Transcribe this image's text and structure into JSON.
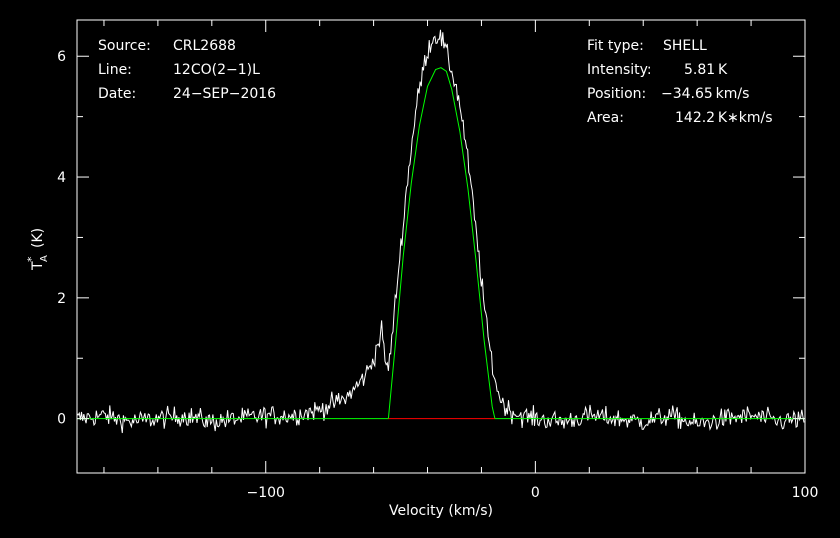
{
  "info": {
    "source_label": "Source:",
    "source_value": "CRL2688",
    "line_label": "Line:",
    "line_value": "12CO(2−1)L",
    "date_label": "Date:",
    "date_value": "24−SEP−2016",
    "fit_type_label": "Fit type:",
    "fit_type_value": "SHELL",
    "intensity_label": "Intensity:",
    "intensity_value": "5.81 K",
    "position_label": "Position:",
    "position_value": "−34.65 km/s",
    "area_label": "Area:",
    "area_value": "142.2 K∗km/s"
  },
  "chart_data": {
    "type": "line",
    "xlabel": "Velocity (km/s)",
    "ylabel_main": "T",
    "ylabel_sub": "A",
    "ylabel_sup": "*",
    "ylabel_unit": "(K)",
    "xlim": [
      -170,
      100
    ],
    "ylim": [
      -0.9,
      6.6
    ],
    "xticks": [
      -100,
      0,
      100
    ],
    "xtick_labels": [
      "−100",
      "0",
      "100"
    ],
    "yticks": [
      0,
      2,
      4,
      6
    ],
    "ytick_labels": [
      "0",
      "2",
      "4",
      "6"
    ],
    "grid": false,
    "colors": {
      "background": "#000000",
      "axes": "#ffffff",
      "spectrum": "#ffffff",
      "fit": "#00ff00",
      "window": "#ff0000"
    },
    "series": [
      {
        "role": "spectrum",
        "color": "#ffffff",
        "x": [
          -170,
          -160,
          -150,
          -140,
          -130,
          -120,
          -110,
          -100,
          -90,
          -85,
          -80,
          -75,
          -72,
          -70,
          -68,
          -65,
          -62,
          -60,
          -58,
          -57,
          -56,
          -55,
          -54,
          -53,
          -52,
          -50,
          -48,
          -46,
          -44,
          -42,
          -40,
          -38,
          -36,
          -35,
          -34,
          -32,
          -30,
          -28,
          -26,
          -24,
          -22,
          -20,
          -18,
          -16,
          -14,
          -12,
          -10,
          -8,
          -5,
          0,
          10,
          20,
          30,
          40,
          50,
          60,
          70,
          80,
          90,
          100
        ],
        "y": [
          0.0,
          0.05,
          -0.05,
          0.0,
          0.05,
          -0.05,
          0.0,
          0.05,
          0.05,
          0.1,
          0.15,
          0.25,
          0.3,
          0.35,
          0.45,
          0.6,
          0.8,
          1.0,
          1.3,
          1.45,
          1.1,
          0.8,
          1.0,
          1.4,
          1.9,
          2.8,
          3.7,
          4.5,
          5.2,
          5.7,
          6.1,
          6.3,
          6.35,
          6.3,
          6.2,
          5.9,
          5.6,
          5.2,
          4.6,
          3.9,
          3.1,
          2.3,
          1.5,
          0.9,
          0.45,
          0.25,
          0.15,
          0.1,
          0.05,
          0.0,
          -0.05,
          0.05,
          0.0,
          -0.05,
          0.05,
          -0.1,
          0.0,
          0.05,
          -0.05,
          0.0
        ]
      },
      {
        "role": "fit",
        "color": "#00ff00",
        "x": [
          -170,
          -70,
          -54.5,
          -52,
          -49,
          -46,
          -43,
          -40,
          -37,
          -35,
          -33,
          -31,
          -28,
          -25,
          -22,
          -19,
          -16,
          -15,
          -10,
          100
        ],
        "y": [
          0,
          0,
          0,
          1.2,
          2.7,
          3.9,
          4.85,
          5.5,
          5.78,
          5.81,
          5.75,
          5.45,
          4.75,
          3.8,
          2.6,
          1.3,
          0.2,
          0,
          0,
          0
        ]
      },
      {
        "role": "window",
        "color": "#ff0000",
        "x": [
          -54.5,
          -15
        ],
        "y": [
          0,
          0
        ]
      }
    ]
  }
}
